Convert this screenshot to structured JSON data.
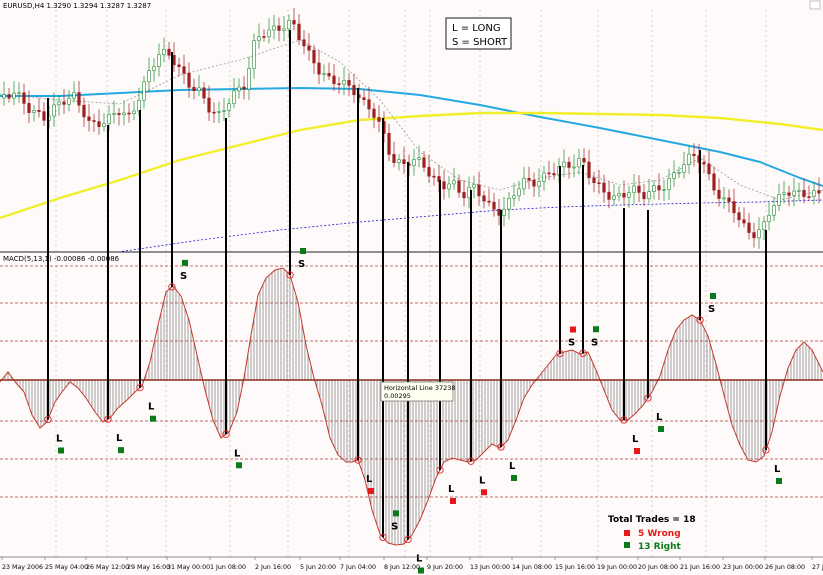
{
  "window": {
    "symbol_info": "EURUSD,H4  1.3290 1.3294 1.3287 1.3287"
  },
  "indicator_label": "MACD(5,13,1) -0.00086 -0.00086",
  "legend": {
    "long": "L = LONG",
    "short": "S = SHORT"
  },
  "tooltip": {
    "line1": "Horizontal Line 37238",
    "line2": "0.00295"
  },
  "summary": {
    "total": "Total Trades = 18",
    "wrong": "5 Wrong",
    "right": "13 Right"
  },
  "colors": {
    "background": "#fffafa",
    "candle": "#1a8c2e",
    "candle_up": "#1a8c2e",
    "candle_down": "#9c2020",
    "ma_blue": "#26a9e0",
    "ma_yellow": "#f2ef2a",
    "ma_dotted_blue": "#1a1acc",
    "ma_dotted_gray": "#9a9a9a",
    "macd_line": "#c0392b",
    "macd_hist": "#606060",
    "zero_line": "#8b2a1a",
    "level_dashed": "#b04040",
    "grid": "#c8c8c8",
    "wrong": "#e41a1a",
    "right": "#0a7a1a"
  },
  "x_axis_labels": [
    "23 May 2006",
    "25 May 04:00",
    "26 May 12:00",
    "29 May 16:00",
    "31 May 00:00",
    "1 Jun 08:00",
    "2 Jun 16:00",
    "5 Jun 20:00",
    "7 Jun 04:00",
    "8 Jun 12:00",
    "9 Jun 20:00",
    "13 Jun 00:00",
    "14 Jun 08:00",
    "15 Jun 16:00",
    "19 Jun 00:00",
    "20 Jun 08:00",
    "21 Jun 16:00",
    "23 Jun 00:00",
    "26 Jun 08:00",
    "27 J"
  ],
  "chart_data": {
    "type": "line",
    "panels": [
      {
        "name": "price",
        "series": [
          {
            "name": "EURUSD,H4",
            "kind": "candlestick"
          },
          {
            "kind": "moving-average",
            "color": "blue-solid"
          },
          {
            "kind": "moving-average",
            "color": "yellow-solid"
          },
          {
            "kind": "moving-average",
            "color": "blue-dotted"
          },
          {
            "kind": "moving-average",
            "color": "gray-dotted"
          }
        ],
        "last": {
          "open": 1.329,
          "high": 1.3294,
          "low": 1.3287,
          "close": 1.3287
        }
      },
      {
        "name": "MACD(5,13,1)",
        "values_label": "-0.00086 -0.00086",
        "horizontal_line": 0.00295
      }
    ],
    "trades": [
      {
        "label": "L",
        "result": "right"
      },
      {
        "label": "L",
        "result": "right"
      },
      {
        "label": "L",
        "result": "right"
      },
      {
        "label": "S",
        "result": "right"
      },
      {
        "label": "L",
        "result": "right"
      },
      {
        "label": "S",
        "result": "right"
      },
      {
        "label": "L",
        "result": "wrong"
      },
      {
        "label": "S",
        "result": "right"
      },
      {
        "label": "L",
        "result": "right"
      },
      {
        "label": "L",
        "result": "wrong"
      },
      {
        "label": "L",
        "result": "wrong"
      },
      {
        "label": "L",
        "result": "right"
      },
      {
        "label": "S",
        "result": "wrong"
      },
      {
        "label": "S",
        "result": "right"
      },
      {
        "label": "L",
        "result": "wrong"
      },
      {
        "label": "L",
        "result": "right"
      },
      {
        "label": "S",
        "result": "right"
      },
      {
        "label": "L",
        "result": "right"
      }
    ]
  }
}
